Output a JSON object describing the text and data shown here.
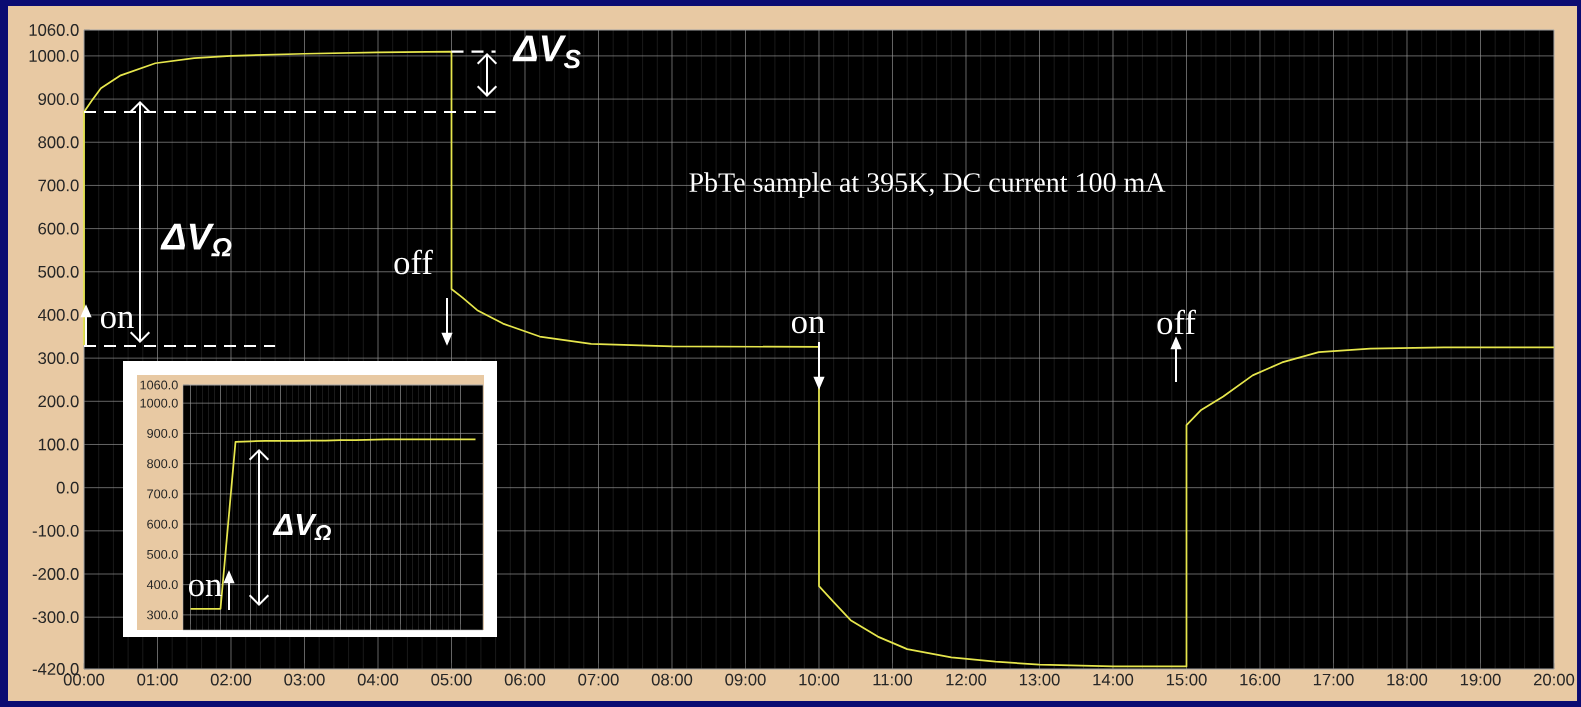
{
  "chart_data": [
    {
      "type": "line",
      "grid": true,
      "marker": "none",
      "xlim": [
        0,
        20
      ],
      "ylim": [
        -420,
        1060
      ],
      "xticks": [
        {
          "value": 0,
          "label": "00:00"
        },
        {
          "value": 1,
          "label": "01:00"
        },
        {
          "value": 2,
          "label": "02:00"
        },
        {
          "value": 3,
          "label": "03:00"
        },
        {
          "value": 4,
          "label": "04:00"
        },
        {
          "value": 5,
          "label": "05:00"
        },
        {
          "value": 6,
          "label": "06:00"
        },
        {
          "value": 7,
          "label": "07:00"
        },
        {
          "value": 8,
          "label": "08:00"
        },
        {
          "value": 9,
          "label": "09:00"
        },
        {
          "value": 10,
          "label": "10:00"
        },
        {
          "value": 11,
          "label": "11:00"
        },
        {
          "value": 12,
          "label": "12:00"
        },
        {
          "value": 13,
          "label": "13:00"
        },
        {
          "value": 14,
          "label": "14:00"
        },
        {
          "value": 15,
          "label": "15:00"
        },
        {
          "value": 16,
          "label": "16:00"
        },
        {
          "value": 17,
          "label": "17:00"
        },
        {
          "value": 18,
          "label": "18:00"
        },
        {
          "value": 19,
          "label": "19:00"
        },
        {
          "value": 20,
          "label": "20:00"
        }
      ],
      "yticks": [
        {
          "value": -420,
          "label": "-420.0"
        },
        {
          "value": -300,
          "label": "-300.0"
        },
        {
          "value": -200,
          "label": "-200.0"
        },
        {
          "value": -100,
          "label": "-100.0"
        },
        {
          "value": 0,
          "label": "0.0"
        },
        {
          "value": 100,
          "label": "100.0"
        },
        {
          "value": 200,
          "label": "200.0"
        },
        {
          "value": 300,
          "label": "300.0"
        },
        {
          "value": 400,
          "label": "400.0"
        },
        {
          "value": 500,
          "label": "500.0"
        },
        {
          "value": 600,
          "label": "600.0"
        },
        {
          "value": 700,
          "label": "700.0"
        },
        {
          "value": 800,
          "label": "800.0"
        },
        {
          "value": 900,
          "label": "900.0"
        },
        {
          "value": 1000,
          "label": "1000.0"
        },
        {
          "value": 1060,
          "label": "1060.0"
        }
      ],
      "series": [
        {
          "color": "#e6e64c",
          "x": [
            0,
            0,
            0.1,
            0.23,
            0.5,
            0.97,
            1.5,
            2,
            3,
            4,
            5,
            5,
            5.15,
            5.35,
            5.7,
            6.2,
            6.9,
            8,
            10,
            10,
            10.2,
            10.43,
            10.8,
            11.2,
            11.8,
            12.4,
            13,
            14,
            15,
            15,
            15.2,
            15.5,
            15.9,
            16.3,
            16.8,
            17.5,
            18.5,
            20
          ],
          "values": [
            330,
            870,
            895,
            925,
            955,
            983,
            995,
            1000,
            1005,
            1008,
            1010,
            460,
            440,
            411,
            380,
            350,
            333,
            327,
            326,
            -228,
            -265,
            -307,
            -345,
            -374,
            -393,
            -403,
            -410,
            -414,
            -414,
            145,
            180,
            211,
            260,
            290,
            314,
            322,
            325,
            325
          ]
        },
        {
          "type": "line",
          "color": "#ffffff",
          "line_style": "dashed",
          "x": [
            0,
            5.6
          ],
          "values": [
            870,
            870
          ]
        },
        {
          "type": "line",
          "color": "#ffffff",
          "line_style": "dashed",
          "x": [
            5,
            5.6
          ],
          "values": [
            1010,
            1010
          ]
        },
        {
          "type": "line",
          "color": "#ffffff",
          "line_style": "dashed",
          "x": [
            0,
            2.6
          ],
          "values": [
            328,
            328
          ]
        }
      ],
      "annotations": [
        "PbTe sample at 395K,  DC current 100 mA",
        "ΔV$_{S}$",
        "ΔV$_{Ω}$",
        "on",
        "off",
        "on",
        "off"
      ]
    },
    {
      "type": "line",
      "grid": true,
      "marker": "none",
      "tick_labels": "y",
      "categories": [
        null,
        null,
        null,
        null,
        null,
        null,
        null,
        null,
        null,
        null,
        null,
        null,
        null,
        null,
        null,
        null,
        null,
        null,
        null,
        null
      ],
      "ylim": [
        250,
        1060
      ],
      "yticks": [
        {
          "value": 300,
          "label": "300.0"
        },
        {
          "value": 400,
          "label": "400.0"
        },
        {
          "value": 500,
          "label": "500.0"
        },
        {
          "value": 600,
          "label": "600.0"
        },
        {
          "value": 700,
          "label": "700.0"
        },
        {
          "value": 800,
          "label": "800.0"
        },
        {
          "value": 900,
          "label": "900.0"
        },
        {
          "value": 1000,
          "label": "1000.0"
        },
        {
          "value": 1060,
          "label": "1060.0"
        }
      ],
      "series": [
        {
          "color": "#e6e64c",
          "values": [
            320,
            320,
            320,
            872,
            874,
            875,
            875,
            875,
            876,
            876,
            878,
            878,
            879,
            880,
            880,
            880,
            880,
            880,
            880,
            880
          ]
        }
      ],
      "annotations": [
        "on",
        "ΔV$_{Ω}$"
      ]
    }
  ]
}
